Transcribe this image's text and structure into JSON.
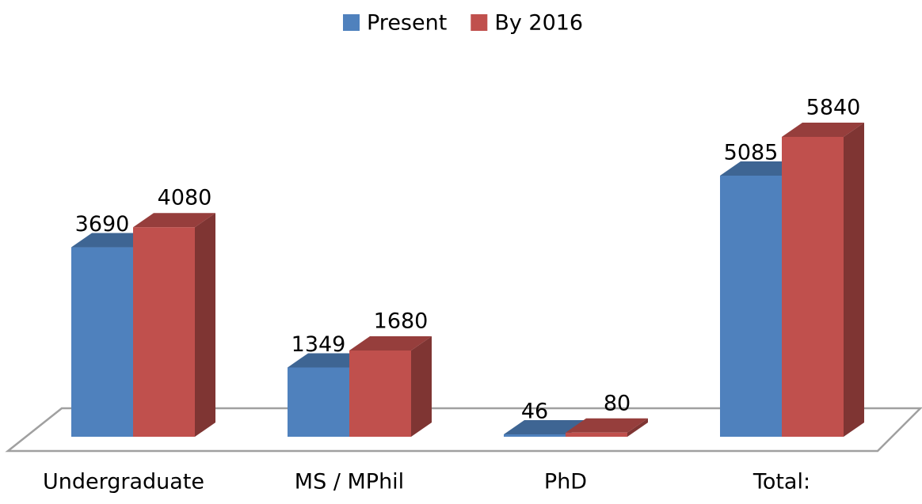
{
  "chart_data": {
    "type": "bar3d",
    "categories": [
      "Undergraduate",
      "MS / MPhil",
      "PhD",
      "Total:"
    ],
    "series": [
      {
        "name": "Present",
        "color": "#4f81bd",
        "values": [
          3690,
          1349,
          46,
          5085
        ]
      },
      {
        "name": "By 2016",
        "color": "#c0504d",
        "values": [
          4080,
          1680,
          80,
          5840
        ]
      }
    ],
    "legend": "top"
  }
}
